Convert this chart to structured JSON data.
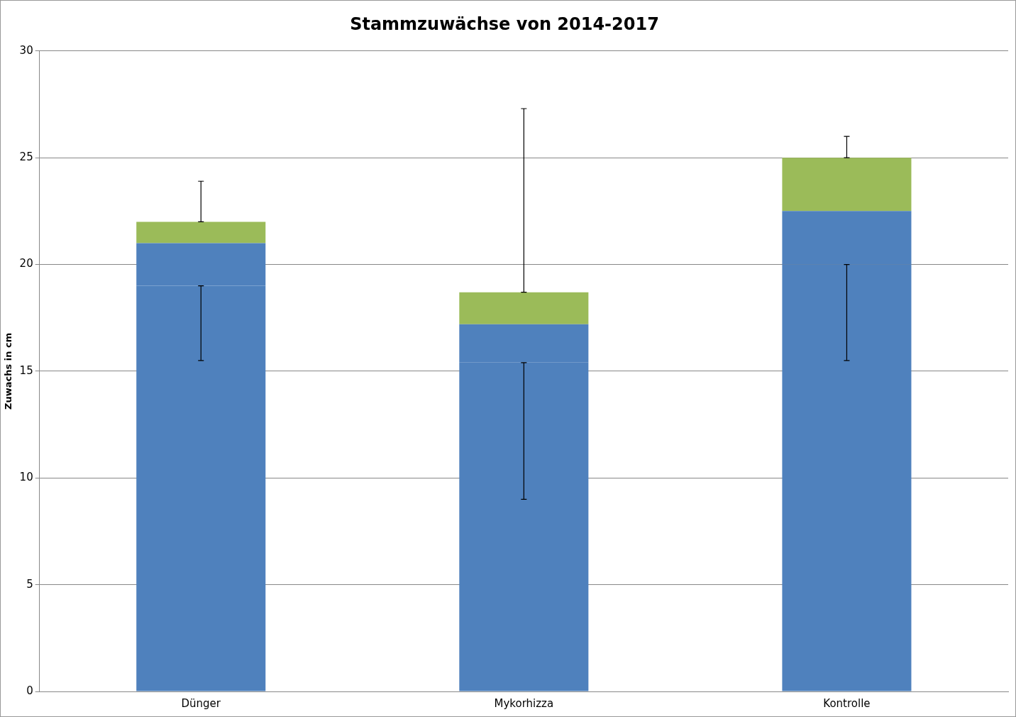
{
  "chart_data": {
    "type": "bar",
    "title": "Stammzuwächse von 2014-2017",
    "ylabel": "Zuwachs in cm",
    "categories": [
      "Dünger",
      "Mykorhizza",
      "Kontrolle"
    ],
    "stacked": true,
    "series": [
      {
        "color": "#4f81bd",
        "values": [
          19,
          15.4,
          20
        ],
        "errors": [
          [
            15.5,
            19
          ],
          [
            9,
            15.4
          ],
          [
            15.5,
            20
          ]
        ]
      },
      {
        "color": "#4f81bd",
        "values": [
          2,
          1.8,
          2.5
        ]
      },
      {
        "color": "#9bbb59",
        "values": [
          1,
          1.5,
          2.5
        ],
        "errors": [
          [
            22,
            23.9
          ],
          [
            18.7,
            27.3
          ],
          [
            25,
            26
          ]
        ]
      }
    ],
    "ylim": [
      0,
      30
    ],
    "yticks": [
      0,
      5,
      10,
      15,
      20,
      25,
      30
    ],
    "grid": "y",
    "legend": false
  }
}
